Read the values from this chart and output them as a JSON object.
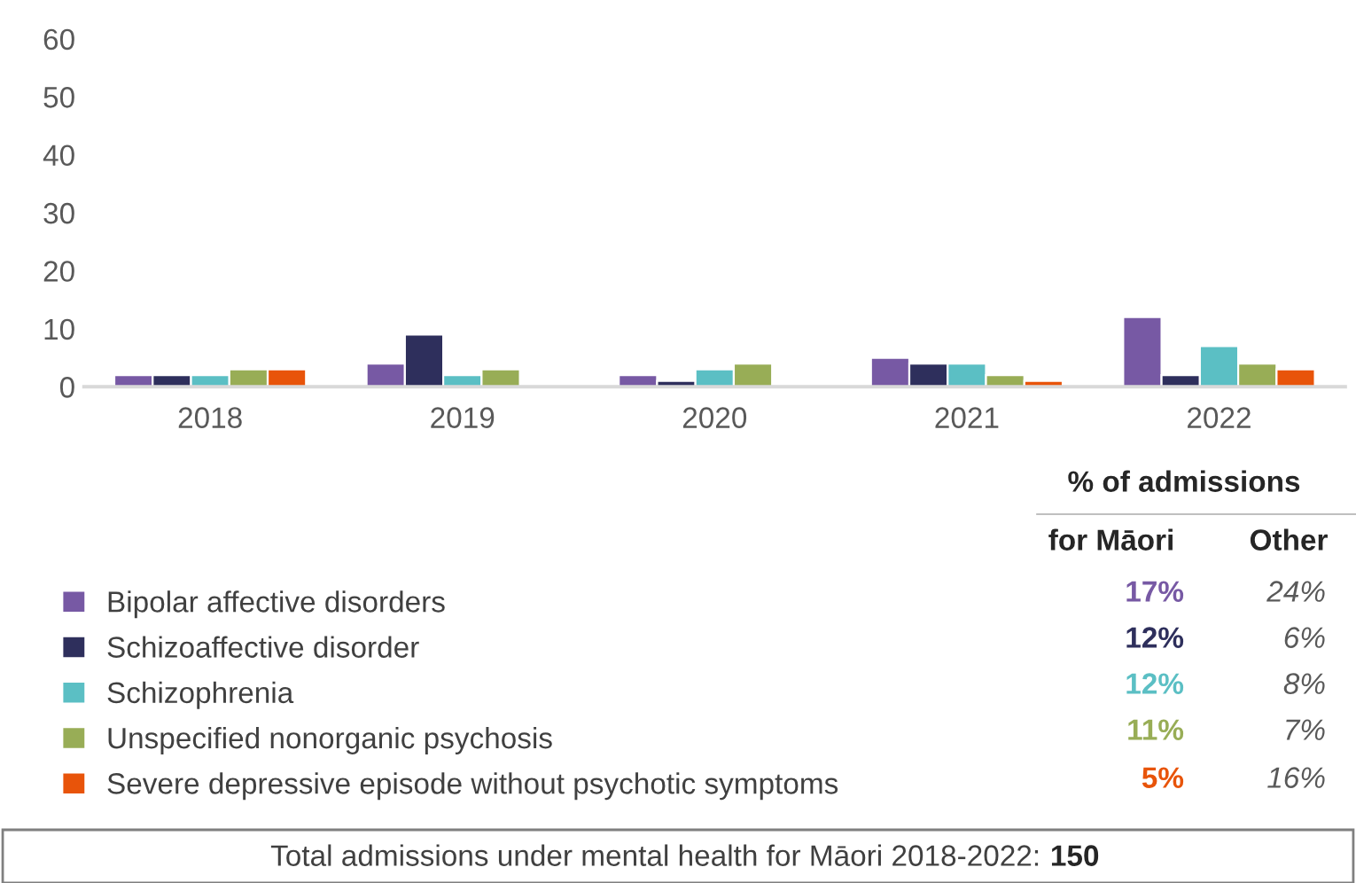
{
  "chart_data": {
    "type": "bar",
    "categories": [
      "2018",
      "2019",
      "2020",
      "2021",
      "2022"
    ],
    "series": [
      {
        "name": "Bipolar affective disorders",
        "color": "#7759a4",
        "values": [
          2,
          4,
          2,
          5,
          12
        ]
      },
      {
        "name": "Schizoaffective disorder",
        "color": "#2e2f5c",
        "values": [
          2,
          9,
          1,
          4,
          2
        ]
      },
      {
        "name": "Schizophrenia",
        "color": "#5bbfc4",
        "values": [
          2,
          2,
          3,
          4,
          7
        ]
      },
      {
        "name": "Unspecified nonorganic psychosis",
        "color": "#98ad56",
        "values": [
          3,
          3,
          4,
          2,
          4
        ]
      },
      {
        "name": "Severe depressive episode without psychotic symptoms",
        "color": "#e8540a",
        "values": [
          3,
          null,
          null,
          1,
          3
        ]
      }
    ],
    "ylim": [
      0,
      60
    ],
    "yticks": [
      0,
      10,
      20,
      30,
      40,
      50,
      60
    ],
    "grid": false,
    "legend": "bottom",
    "annotations": [
      "% of admissions",
      "for Māori",
      "Other",
      "17%",
      "24%",
      "12%",
      "6%",
      "12%",
      "8%",
      "11%",
      "7%",
      "5%",
      "16%",
      "Total admissions under mental health for Māori 2018-2022:",
      "150"
    ]
  }
}
